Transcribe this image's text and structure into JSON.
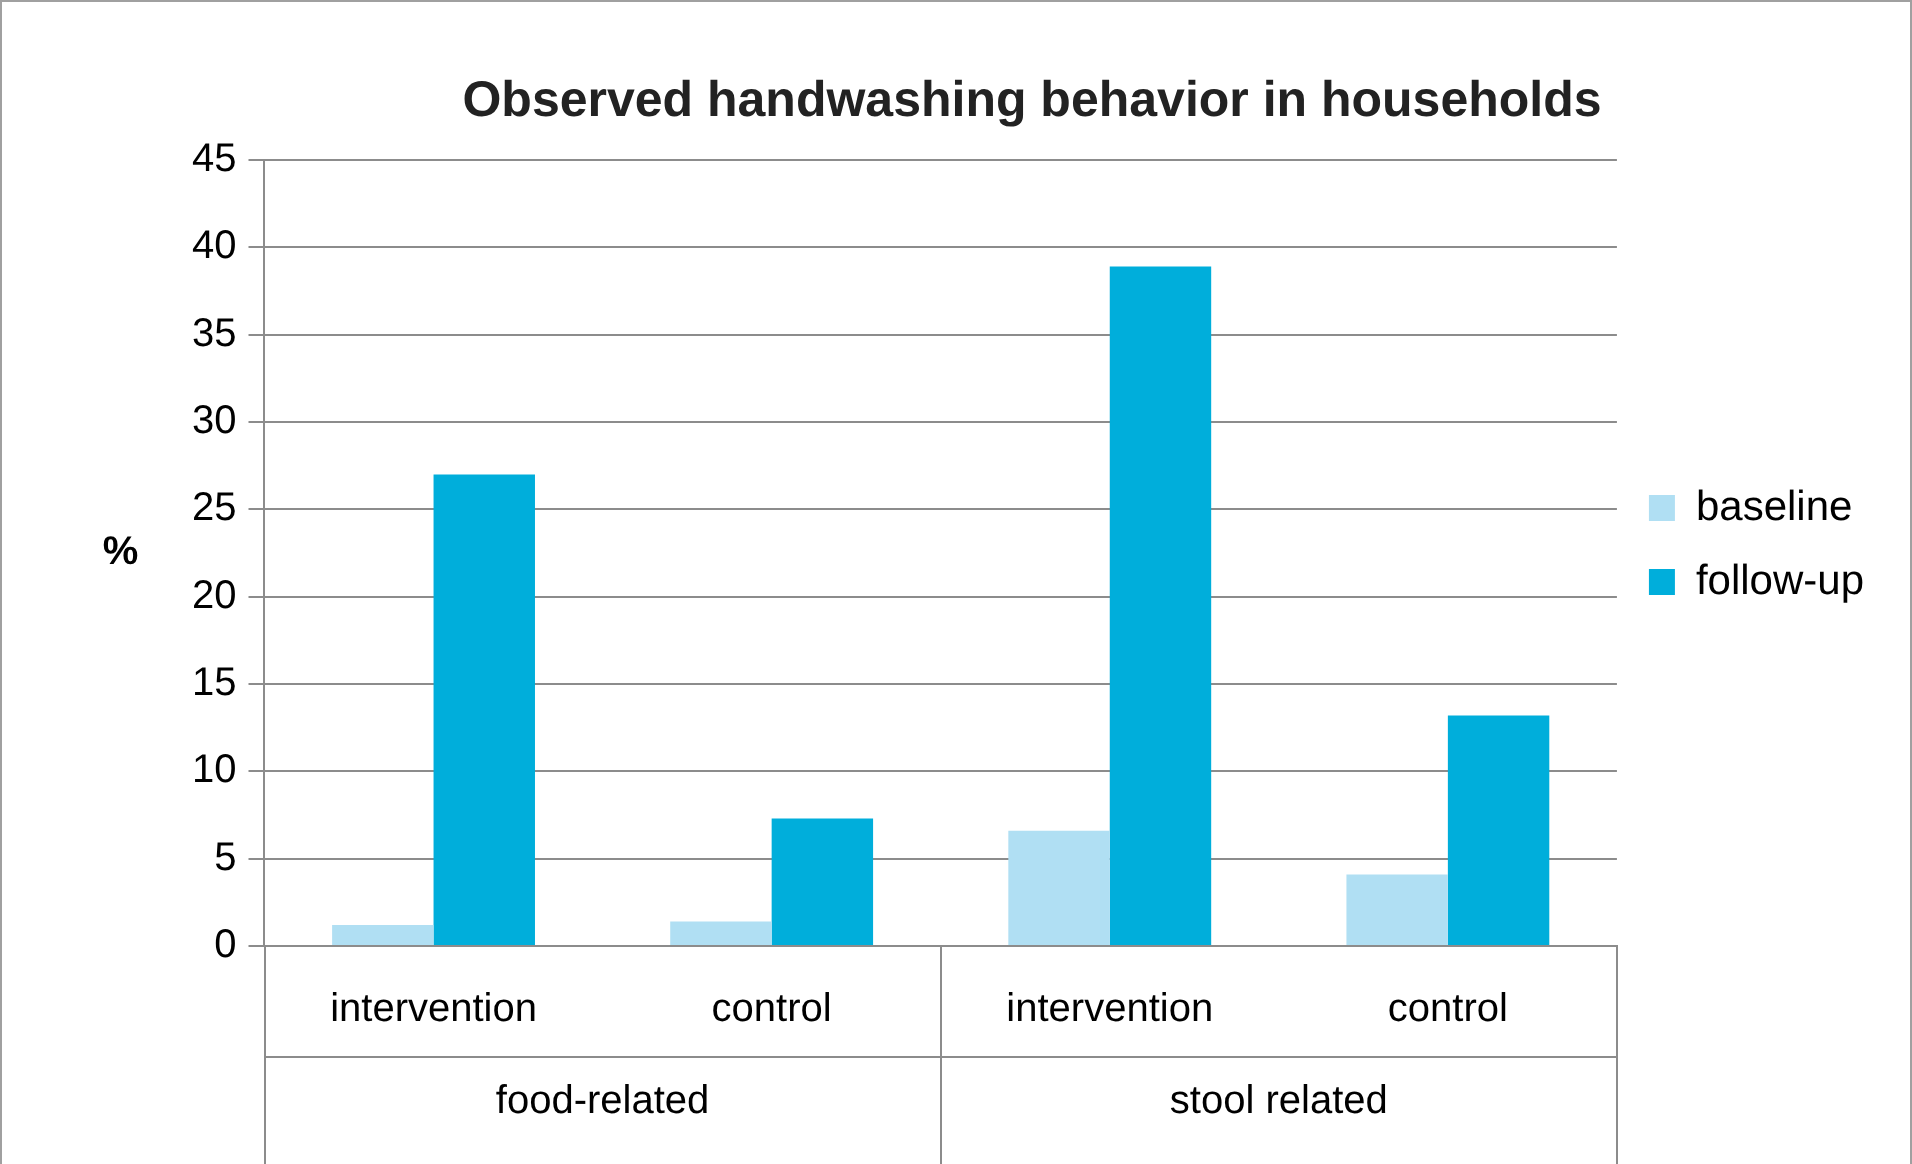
{
  "chart_data": {
    "type": "bar",
    "title": "Observed handwashing behavior in households",
    "ylabel": "%",
    "categories": [
      "intervention",
      "control",
      "intervention",
      "control"
    ],
    "annotations": [
      "food-related",
      "stool related"
    ],
    "series": [
      {
        "name": "baseline",
        "color": "#b0dff3",
        "values": [
          1.2,
          1.4,
          6.6,
          4.1
        ]
      },
      {
        "name": "follow-up",
        "color": "#00aedb",
        "values": [
          27.0,
          7.3,
          38.9,
          13.2
        ]
      }
    ],
    "ylim": [
      0,
      45
    ],
    "yticks": [
      0,
      5,
      10,
      15,
      20,
      25,
      30,
      35,
      40,
      45
    ],
    "grid": "y",
    "legend": "right"
  }
}
